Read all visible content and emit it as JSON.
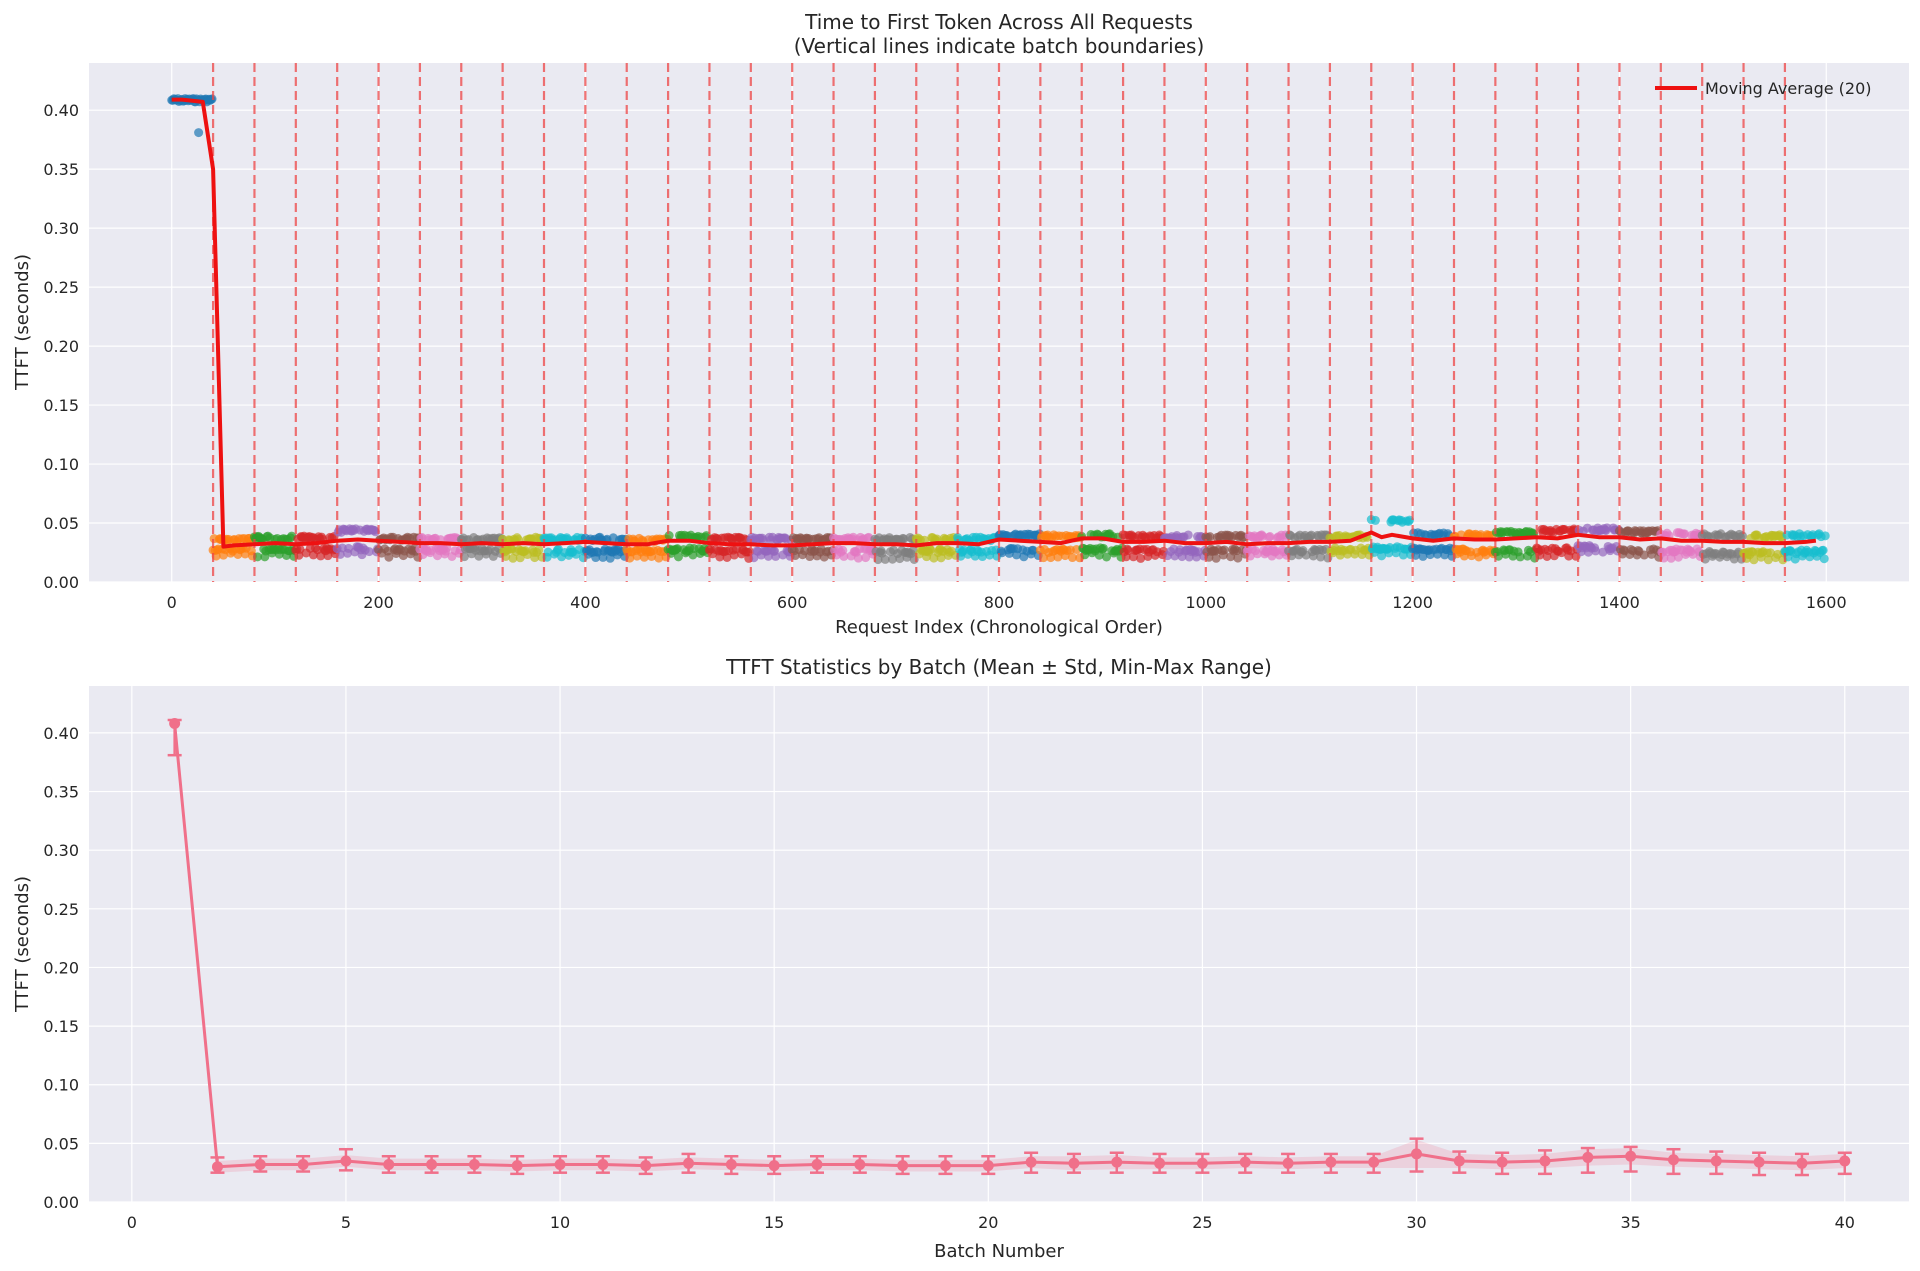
{
  "chart_data": [
    {
      "type": "scatter",
      "title": "Time to First Token Across All Requests",
      "subtitle": "(Vertical lines indicate batch boundaries)",
      "xlabel": "Request Index (Chronological Order)",
      "ylabel": "TTFT (seconds)",
      "xlim": [
        -80,
        1680
      ],
      "ylim": [
        0,
        0.44
      ],
      "xticks": [
        0,
        200,
        400,
        600,
        800,
        1000,
        1200,
        1400,
        1600
      ],
      "xtick_labels": [
        "0",
        "200",
        "400",
        "600",
        "800",
        "1000",
        "1200",
        "1400",
        "1600"
      ],
      "yticks": [
        0.0,
        0.05,
        0.1,
        0.15,
        0.2,
        0.25,
        0.3,
        0.35,
        0.4
      ],
      "ytick_labels": [
        "0.00",
        "0.05",
        "0.10",
        "0.15",
        "0.20",
        "0.25",
        "0.30",
        "0.35",
        "0.40"
      ],
      "grid": true,
      "legend": {
        "position": "top-right",
        "entries": [
          "Moving Average (20)"
        ]
      },
      "batch_size": 40,
      "batch_boundaries": [
        40,
        80,
        120,
        160,
        200,
        240,
        280,
        320,
        360,
        400,
        440,
        480,
        520,
        560,
        600,
        640,
        680,
        720,
        760,
        800,
        840,
        880,
        920,
        960,
        1000,
        1040,
        1080,
        1120,
        1160,
        1200,
        1240,
        1280,
        1320,
        1360,
        1400,
        1440,
        1480,
        1520,
        1560
      ],
      "series": [
        {
          "name": "Moving Average (20)",
          "color": "#ee1111",
          "x": [
            0,
            10,
            20,
            30,
            40,
            50,
            60,
            80,
            100,
            120,
            140,
            160,
            180,
            200,
            220,
            240,
            260,
            280,
            300,
            320,
            340,
            360,
            380,
            400,
            420,
            440,
            460,
            480,
            500,
            520,
            540,
            560,
            580,
            600,
            620,
            640,
            660,
            680,
            700,
            720,
            740,
            760,
            780,
            800,
            820,
            840,
            860,
            880,
            900,
            920,
            940,
            960,
            980,
            1000,
            1020,
            1040,
            1060,
            1080,
            1100,
            1120,
            1140,
            1160,
            1170,
            1180,
            1200,
            1220,
            1240,
            1260,
            1280,
            1300,
            1320,
            1340,
            1360,
            1380,
            1400,
            1420,
            1440,
            1460,
            1480,
            1500,
            1520,
            1540,
            1560,
            1580,
            1590
          ],
          "y": [
            0.409,
            0.409,
            0.408,
            0.407,
            0.35,
            0.03,
            0.031,
            0.032,
            0.033,
            0.032,
            0.033,
            0.035,
            0.036,
            0.035,
            0.034,
            0.033,
            0.033,
            0.032,
            0.033,
            0.032,
            0.033,
            0.032,
            0.033,
            0.034,
            0.033,
            0.032,
            0.032,
            0.035,
            0.035,
            0.033,
            0.032,
            0.032,
            0.031,
            0.031,
            0.032,
            0.033,
            0.033,
            0.032,
            0.032,
            0.031,
            0.033,
            0.033,
            0.032,
            0.036,
            0.035,
            0.034,
            0.033,
            0.037,
            0.037,
            0.034,
            0.034,
            0.035,
            0.033,
            0.033,
            0.034,
            0.032,
            0.033,
            0.033,
            0.034,
            0.034,
            0.035,
            0.042,
            0.038,
            0.04,
            0.037,
            0.035,
            0.037,
            0.036,
            0.036,
            0.037,
            0.038,
            0.037,
            0.04,
            0.038,
            0.038,
            0.036,
            0.037,
            0.035,
            0.035,
            0.034,
            0.034,
            0.033,
            0.033,
            0.034,
            0.035
          ]
        }
      ],
      "batch_colors": [
        "#1f77b4",
        "#ff7f0e",
        "#2ca02c",
        "#d62728",
        "#9467bd",
        "#8c564b",
        "#e377c2",
        "#7f7f7f",
        "#bcbd22",
        "#17becf"
      ],
      "batch_levels": [
        {
          "batch": 1,
          "high": 0.41,
          "low": 0.381
        },
        {
          "batch": 2,
          "high": 0.037,
          "low": 0.026
        },
        {
          "batch": 3,
          "high": 0.039,
          "low": 0.026
        },
        {
          "batch": 4,
          "high": 0.039,
          "low": 0.026
        },
        {
          "batch": 5,
          "high": 0.045,
          "low": 0.027
        },
        {
          "batch": 6,
          "high": 0.038,
          "low": 0.026
        },
        {
          "batch": 7,
          "high": 0.038,
          "low": 0.026
        },
        {
          "batch": 8,
          "high": 0.038,
          "low": 0.026
        },
        {
          "batch": 9,
          "high": 0.038,
          "low": 0.025
        },
        {
          "batch": 10,
          "high": 0.038,
          "low": 0.025
        },
        {
          "batch": 11,
          "high": 0.038,
          "low": 0.025
        },
        {
          "batch": 12,
          "high": 0.037,
          "low": 0.025
        },
        {
          "batch": 13,
          "high": 0.04,
          "low": 0.026
        },
        {
          "batch": 14,
          "high": 0.038,
          "low": 0.025
        },
        {
          "batch": 15,
          "high": 0.038,
          "low": 0.025
        },
        {
          "batch": 16,
          "high": 0.038,
          "low": 0.025
        },
        {
          "batch": 17,
          "high": 0.038,
          "low": 0.025
        },
        {
          "batch": 18,
          "high": 0.038,
          "low": 0.024
        },
        {
          "batch": 19,
          "high": 0.038,
          "low": 0.025
        },
        {
          "batch": 20,
          "high": 0.038,
          "low": 0.025
        },
        {
          "batch": 21,
          "high": 0.041,
          "low": 0.026
        },
        {
          "batch": 22,
          "high": 0.04,
          "low": 0.025
        },
        {
          "batch": 23,
          "high": 0.041,
          "low": 0.026
        },
        {
          "batch": 24,
          "high": 0.04,
          "low": 0.025
        },
        {
          "batch": 25,
          "high": 0.04,
          "low": 0.025
        },
        {
          "batch": 26,
          "high": 0.04,
          "low": 0.025
        },
        {
          "batch": 27,
          "high": 0.04,
          "low": 0.025
        },
        {
          "batch": 28,
          "high": 0.04,
          "low": 0.025
        },
        {
          "batch": 29,
          "high": 0.04,
          "low": 0.026
        },
        {
          "batch": 30,
          "high": 0.053,
          "low": 0.027
        },
        {
          "batch": 31,
          "high": 0.042,
          "low": 0.026
        },
        {
          "batch": 32,
          "high": 0.041,
          "low": 0.025
        },
        {
          "batch": 33,
          "high": 0.043,
          "low": 0.025
        },
        {
          "batch": 34,
          "high": 0.045,
          "low": 0.026
        },
        {
          "batch": 35,
          "high": 0.046,
          "low": 0.028
        },
        {
          "batch": 36,
          "high": 0.044,
          "low": 0.025
        },
        {
          "batch": 37,
          "high": 0.042,
          "low": 0.025
        },
        {
          "batch": 38,
          "high": 0.041,
          "low": 0.023
        },
        {
          "batch": 39,
          "high": 0.04,
          "low": 0.023
        },
        {
          "batch": 40,
          "high": 0.041,
          "low": 0.024
        }
      ]
    },
    {
      "type": "line",
      "title": "TTFT Statistics by Batch (Mean ± Std, Min-Max Range)",
      "xlabel": "Batch Number",
      "ylabel": "TTFT (seconds)",
      "xlim": [
        -1,
        41.5
      ],
      "ylim": [
        0,
        0.44
      ],
      "xticks": [
        0,
        5,
        10,
        15,
        20,
        25,
        30,
        35,
        40
      ],
      "xtick_labels": [
        "0",
        "5",
        "10",
        "15",
        "20",
        "25",
        "30",
        "35",
        "40"
      ],
      "yticks": [
        0.0,
        0.05,
        0.1,
        0.15,
        0.2,
        0.25,
        0.3,
        0.35,
        0.4
      ],
      "ytick_labels": [
        "0.00",
        "0.05",
        "0.10",
        "0.15",
        "0.20",
        "0.25",
        "0.30",
        "0.35",
        "0.40"
      ],
      "grid": true,
      "color": "#f0708a",
      "x": [
        1,
        2,
        3,
        4,
        5,
        6,
        7,
        8,
        9,
        10,
        11,
        12,
        13,
        14,
        15,
        16,
        17,
        18,
        19,
        20,
        21,
        22,
        23,
        24,
        25,
        26,
        27,
        28,
        29,
        30,
        31,
        32,
        33,
        34,
        35,
        36,
        37,
        38,
        39,
        40
      ],
      "series": [
        {
          "values": [
            0.408,
            0.03,
            0.032,
            0.032,
            0.035,
            0.032,
            0.032,
            0.032,
            0.031,
            0.032,
            0.032,
            0.031,
            0.033,
            0.032,
            0.031,
            0.032,
            0.032,
            0.031,
            0.031,
            0.031,
            0.034,
            0.033,
            0.034,
            0.033,
            0.033,
            0.034,
            0.033,
            0.034,
            0.034,
            0.041,
            0.035,
            0.034,
            0.035,
            0.038,
            0.039,
            0.036,
            0.035,
            0.034,
            0.033,
            0.035
          ],
          "std": [
            0.003,
            0.005,
            0.005,
            0.005,
            0.005,
            0.005,
            0.005,
            0.005,
            0.005,
            0.005,
            0.005,
            0.005,
            0.005,
            0.005,
            0.005,
            0.005,
            0.005,
            0.005,
            0.005,
            0.005,
            0.005,
            0.006,
            0.006,
            0.005,
            0.005,
            0.005,
            0.005,
            0.005,
            0.005,
            0.012,
            0.006,
            0.006,
            0.006,
            0.007,
            0.007,
            0.006,
            0.006,
            0.006,
            0.006,
            0.006
          ],
          "min": [
            0.381,
            0.025,
            0.026,
            0.026,
            0.027,
            0.025,
            0.025,
            0.025,
            0.024,
            0.025,
            0.025,
            0.024,
            0.025,
            0.024,
            0.024,
            0.025,
            0.025,
            0.024,
            0.024,
            0.024,
            0.025,
            0.025,
            0.025,
            0.025,
            0.025,
            0.025,
            0.025,
            0.025,
            0.025,
            0.026,
            0.025,
            0.024,
            0.024,
            0.025,
            0.026,
            0.024,
            0.024,
            0.023,
            0.023,
            0.024
          ],
          "max": [
            0.411,
            0.038,
            0.039,
            0.039,
            0.045,
            0.039,
            0.039,
            0.039,
            0.039,
            0.039,
            0.039,
            0.038,
            0.041,
            0.039,
            0.039,
            0.039,
            0.039,
            0.039,
            0.039,
            0.039,
            0.042,
            0.041,
            0.042,
            0.041,
            0.041,
            0.041,
            0.041,
            0.041,
            0.041,
            0.054,
            0.043,
            0.042,
            0.044,
            0.046,
            0.047,
            0.045,
            0.043,
            0.042,
            0.041,
            0.042
          ]
        }
      ]
    }
  ]
}
